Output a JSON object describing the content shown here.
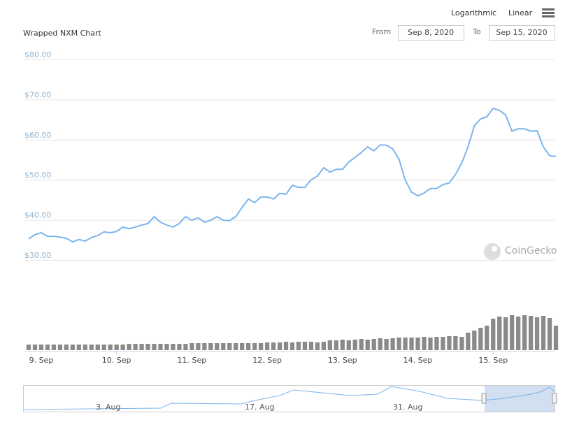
{
  "chart_data": {
    "type": "line",
    "title": "Wrapped NXM Chart",
    "categories": [
      null,
      null,
      "9. Sep",
      null,
      null,
      null,
      null,
      null,
      null,
      null,
      null,
      null,
      null,
      null,
      "10. Sep",
      null,
      null,
      null,
      null,
      null,
      null,
      null,
      null,
      null,
      null,
      null,
      "11. Sep",
      null,
      null,
      null,
      null,
      null,
      null,
      null,
      null,
      null,
      null,
      null,
      "12. Sep",
      null,
      null,
      null,
      null,
      null,
      null,
      null,
      null,
      null,
      null,
      null,
      "13. Sep",
      null,
      null,
      null,
      null,
      null,
      null,
      null,
      null,
      null,
      null,
      null,
      "14. Sep",
      null,
      null,
      null,
      null,
      null,
      null,
      null,
      null,
      null,
      null,
      null,
      "15. Sep",
      null,
      null,
      null,
      null,
      null,
      null,
      null,
      null,
      null,
      null
    ],
    "values": [
      35.3,
      36.3,
      36.8,
      35.9,
      35.9,
      35.7,
      35.4,
      34.5,
      35.1,
      34.7,
      35.6,
      36.1,
      37.0,
      36.8,
      37.1,
      38.2,
      37.8,
      38.2,
      38.7,
      39.1,
      40.8,
      39.4,
      38.7,
      38.2,
      39.1,
      40.8,
      39.9,
      40.5,
      39.4,
      39.9,
      40.8,
      39.9,
      39.8,
      40.8,
      43.1,
      45.2,
      44.3,
      45.7,
      45.7,
      45.2,
      46.6,
      46.4,
      48.6,
      48.1,
      48.1,
      50.0,
      50.9,
      53.0,
      51.9,
      52.6,
      52.6,
      54.4,
      55.6,
      56.8,
      58.2,
      57.2,
      58.7,
      58.6,
      57.7,
      55.1,
      49.9,
      46.9,
      46.0,
      46.7,
      47.8,
      47.8,
      48.8,
      49.2,
      51.3,
      54.2,
      58.2,
      63.4,
      65.2,
      65.7,
      67.8,
      67.3,
      66.1,
      62.1,
      62.7,
      62.7,
      62.1,
      62.2,
      58.2,
      56.0,
      55.8
    ],
    "volume": [
      8,
      8,
      8,
      8,
      8,
      8,
      8,
      8,
      8,
      8,
      8,
      8,
      8,
      8,
      8,
      8,
      9,
      9,
      9,
      9,
      9,
      9,
      9,
      9,
      9,
      9,
      10,
      10,
      10,
      10,
      10,
      10,
      10,
      10,
      10,
      10,
      10,
      10,
      11,
      11,
      11,
      12,
      11,
      12,
      12,
      12,
      11,
      12,
      14,
      14,
      15,
      14,
      15,
      16,
      15,
      16,
      17,
      16,
      17,
      18,
      18,
      18,
      18,
      19,
      18,
      19,
      19,
      20,
      20,
      19,
      25,
      28,
      32,
      35,
      45,
      48,
      47,
      50,
      48,
      50,
      49,
      47,
      49,
      46,
      35
    ],
    "color": "#7cb5ec",
    "volume_color": "#8a8a8a",
    "ylim": [
      30,
      80
    ],
    "yticks": [
      {
        "value": 30,
        "label": "$30.00"
      },
      {
        "value": 40,
        "label": "$40.00"
      },
      {
        "value": 50,
        "label": "$50.00"
      },
      {
        "value": 60,
        "label": "$60.00"
      },
      {
        "value": 70,
        "label": "$70.00"
      },
      {
        "value": 80,
        "label": "$80.00"
      }
    ],
    "grid": true
  },
  "controls": {
    "scales": [
      "Logarithmic",
      "Linear"
    ],
    "from_label": "From",
    "from": "Sep 8, 2020",
    "to_label": "To",
    "to": "Sep 15, 2020"
  },
  "watermark": "CoinGecko",
  "navigator": {
    "labels": [
      "3. Aug",
      "17. Aug",
      "31. Aug"
    ]
  }
}
